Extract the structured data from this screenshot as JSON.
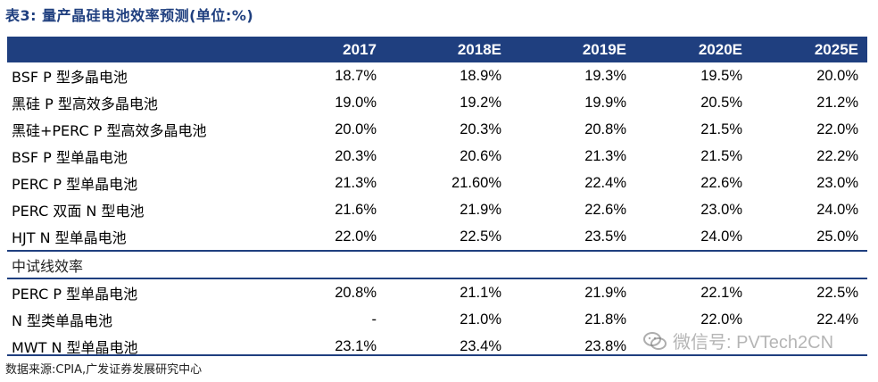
{
  "title": "表3:  量产晶硅电池效率预测(单位:%)",
  "columns": [
    "",
    "2017",
    "2018E",
    "2019E",
    "2020E",
    "2025E"
  ],
  "rows": [
    {
      "label": "BSF P 型多晶电池",
      "values": [
        "18.7%",
        "18.9%",
        "19.3%",
        "19.5%",
        "20.0%"
      ]
    },
    {
      "label": "黑硅 P 型高效多晶电池",
      "values": [
        "19.0%",
        "19.2%",
        "19.9%",
        "20.5%",
        "21.2%"
      ]
    },
    {
      "label": "黑硅+PERC P 型高效多晶电池",
      "values": [
        "20.0%",
        "20.3%",
        "20.8%",
        "21.5%",
        "22.0%"
      ]
    },
    {
      "label": "BSF P 型单晶电池",
      "values": [
        "20.3%",
        "20.6%",
        "21.3%",
        "21.5%",
        "22.2%"
      ]
    },
    {
      "label": "PERC P 型单晶电池",
      "values": [
        "21.3%",
        "21.60%",
        "22.4%",
        "22.6%",
        "23.0%"
      ]
    },
    {
      "label": "PERC 双面 N 型电池",
      "values": [
        "21.6%",
        "21.9%",
        "22.6%",
        "23.0%",
        "24.0%"
      ]
    },
    {
      "label": "HJT N 型单晶电池",
      "values": [
        "22.0%",
        "22.5%",
        "23.5%",
        "24.0%",
        "25.0%"
      ]
    }
  ],
  "section_label": "中试线效率",
  "pilot_rows": [
    {
      "label": "PERC P 型单晶电池",
      "values": [
        "20.8%",
        "21.1%",
        "21.9%",
        "22.1%",
        "22.5%"
      ]
    },
    {
      "label": "N 型类单晶电池",
      "values": [
        "-",
        "21.0%",
        "21.8%",
        "22.0%",
        "22.4%"
      ]
    },
    {
      "label": "MWT N 型单晶电池",
      "values": [
        "23.1%",
        "23.4%",
        "23.8%",
        "",
        ""
      ]
    }
  ],
  "source": "数据来源:CPIA,广发证券发展研究中心",
  "watermark": "微信号: PVTech2CN",
  "colors": {
    "header_bg": "#1f3f7f",
    "title": "#1f3f7f"
  }
}
